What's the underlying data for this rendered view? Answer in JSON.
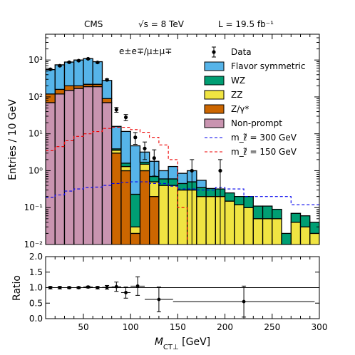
{
  "header": {
    "experiment": "CMS",
    "energy": "√s = 8 TeV",
    "lumi": "L = 19.5 fb⁻¹"
  },
  "chart_data": [
    {
      "type": "stacked-histogram",
      "channel_label": "e±e∓/μ±μ∓",
      "ylabel": "Entries / 10 GeV",
      "yscale": "log",
      "ylim": [
        0.01,
        5000
      ],
      "xlim": [
        10,
        300
      ],
      "grid": false,
      "legend_position": "top-right",
      "y_ticks": [
        {
          "value": 0.01,
          "label": "10⁻²"
        },
        {
          "value": 0.1,
          "label": "10⁻¹"
        },
        {
          "value": 1,
          "label": "10⁰"
        },
        {
          "value": 10,
          "label": "10¹"
        },
        {
          "value": 100,
          "label": "10²"
        },
        {
          "value": 1000,
          "label": "10³"
        }
      ],
      "bin_edges": [
        10,
        20,
        30,
        40,
        50,
        60,
        70,
        80,
        90,
        100,
        110,
        120,
        130,
        140,
        150,
        160,
        170,
        180,
        190,
        200,
        210,
        220,
        230,
        240,
        250,
        260,
        270,
        280,
        290,
        300
      ],
      "stack_order": [
        "Non-prompt",
        "Z/γ*",
        "ZZ",
        "WZ",
        "Flavor symmetric"
      ],
      "series": [
        {
          "name": "Non-prompt",
          "color": "#c994b0",
          "values": [
            70,
            120,
            150,
            170,
            190,
            190,
            70,
            0,
            0,
            0,
            0,
            0,
            0,
            0,
            0,
            0,
            0,
            0,
            0,
            0,
            0,
            0,
            0,
            0,
            0,
            0,
            0,
            0,
            0
          ]
        },
        {
          "name": "Z/γ*",
          "color": "#cc6600",
          "values": [
            50,
            40,
            50,
            30,
            30,
            30,
            20,
            3,
            1,
            0.02,
            1,
            0.2,
            0,
            0,
            0,
            0,
            0,
            0,
            0,
            0,
            0,
            0,
            0,
            0,
            0,
            0,
            0,
            0,
            0
          ]
        },
        {
          "name": "ZZ",
          "color": "#f0e442",
          "values": [
            0,
            0,
            0,
            0,
            0,
            0,
            0,
            0.6,
            0.3,
            0.01,
            0.5,
            0.3,
            0.4,
            0.4,
            0.3,
            0.3,
            0.2,
            0.2,
            0.2,
            0.15,
            0.12,
            0.1,
            0.05,
            0.05,
            0.05,
            0.01,
            0.04,
            0.03,
            0.02
          ]
        },
        {
          "name": "WZ",
          "color": "#009e73",
          "values": [
            0,
            0,
            0,
            0,
            0,
            0,
            0,
            0.3,
            0.3,
            0.2,
            0.2,
            0.2,
            0.2,
            0.2,
            0.15,
            0.2,
            0.15,
            0.13,
            0.12,
            0.1,
            0.08,
            0.1,
            0.06,
            0.06,
            0.04,
            0.01,
            0.03,
            0.03,
            0.02
          ]
        },
        {
          "name": "Flavor symmetric",
          "color": "#56b4e9",
          "values": [
            430,
            580,
            680,
            800,
            870,
            680,
            190,
            12,
            10,
            4.5,
            1.5,
            1.1,
            0.4,
            0.7,
            0.4,
            0.5,
            0.2,
            0,
            0,
            0,
            0,
            0,
            0,
            0,
            0,
            0,
            0,
            0,
            0
          ]
        }
      ],
      "data": {
        "name": "Data",
        "points": [
          {
            "x": 15,
            "y": 560
          },
          {
            "x": 25,
            "y": 700
          },
          {
            "x": 35,
            "y": 870
          },
          {
            "x": 45,
            "y": 960
          },
          {
            "x": 55,
            "y": 1080
          },
          {
            "x": 65,
            "y": 860
          },
          {
            "x": 75,
            "y": 290
          },
          {
            "x": 85,
            "y": 45
          },
          {
            "x": 95,
            "y": 28
          },
          {
            "x": 105,
            "y": 8
          },
          {
            "x": 115,
            "y": 4
          },
          {
            "x": 125,
            "y": 2.2
          },
          {
            "x": 165,
            "y": 1
          },
          {
            "x": 195,
            "y": 1
          }
        ]
      },
      "signals": [
        {
          "name": "m_ℓ̃ = 300 GeV",
          "color": "#0000ee",
          "dash": "dashed",
          "values": [
            0.19,
            0.22,
            0.28,
            0.32,
            0.35,
            0.36,
            0.4,
            0.45,
            0.48,
            0.5,
            0.5,
            0.45,
            0.45,
            0.38,
            0.32,
            0.32,
            0.3,
            0.3,
            0.35,
            0.32,
            0.32,
            0.2,
            0.2,
            0.2,
            0.2,
            0.2,
            0.12,
            0.12,
            0.12
          ]
        },
        {
          "name": "m_ℓ̃ = 150 GeV",
          "color": "#ee0000",
          "dash": "dashed",
          "values": [
            3.5,
            4.5,
            6.5,
            8.5,
            10,
            11.5,
            14,
            15,
            15,
            13,
            11,
            8,
            5,
            2,
            0.1,
            0,
            0,
            0,
            0,
            0,
            0,
            0,
            0,
            0,
            0,
            0,
            0,
            0,
            0
          ]
        }
      ]
    },
    {
      "type": "scatter",
      "ylabel": "Ratio",
      "xlabel": "M_CT⊥ [GeV]",
      "xlim": [
        10,
        300
      ],
      "ylim": [
        0.0,
        2.0
      ],
      "y_ticks": [
        0.0,
        0.5,
        1.0,
        1.5,
        2.0
      ],
      "x_ticks": [
        50,
        100,
        150,
        200,
        250,
        300
      ],
      "reference_line": 1.0,
      "points": [
        {
          "x": 15,
          "xerr": 5,
          "y": 1.0,
          "yerr": 0.04
        },
        {
          "x": 25,
          "xerr": 5,
          "y": 1.0,
          "yerr": 0.04
        },
        {
          "x": 35,
          "xerr": 5,
          "y": 1.0,
          "yerr": 0.03
        },
        {
          "x": 45,
          "xerr": 5,
          "y": 1.0,
          "yerr": 0.03
        },
        {
          "x": 55,
          "xerr": 5,
          "y": 1.02,
          "yerr": 0.03
        },
        {
          "x": 65,
          "xerr": 5,
          "y": 1.0,
          "yerr": 0.04
        },
        {
          "x": 75,
          "xerr": 5,
          "y": 1.01,
          "yerr": 0.06
        },
        {
          "x": 85,
          "xerr": 5,
          "y": 1.03,
          "yerr": 0.15
        },
        {
          "x": 95,
          "xerr": 5,
          "y": 0.84,
          "yerr": 0.18
        },
        {
          "x": 107.5,
          "xerr": 7.5,
          "y": 1.05,
          "yerr": 0.3
        },
        {
          "x": 130,
          "xerr": 15,
          "y": 0.62,
          "yerr": 0.4
        },
        {
          "x": 220,
          "xerr": 75,
          "y": 0.55,
          "yerr": 0.5
        }
      ]
    }
  ]
}
